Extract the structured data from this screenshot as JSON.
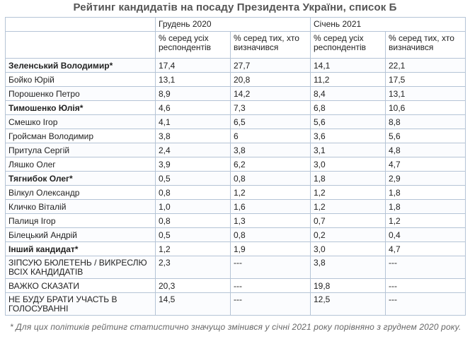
{
  "title": "Рейтинг кандидатів на посаду Президента України, список Б",
  "periods": [
    "Грудень 2020",
    "Січень 2021"
  ],
  "subheaders": [
    "% серед усіх респондентів",
    "% серед тих, хто визначився",
    "% серед усіх респондентів",
    "% серед тих, хто визначився"
  ],
  "rows": [
    {
      "name": "Зеленський Володимир*",
      "bold": true,
      "v": [
        "17,4",
        "27,7",
        "14,1",
        "22,1"
      ]
    },
    {
      "name": "Бойко Юрій",
      "bold": false,
      "v": [
        "13,1",
        "20,8",
        "11,2",
        "17,5"
      ]
    },
    {
      "name": "Порошенко Петро",
      "bold": false,
      "v": [
        "8,9",
        "14,2",
        "8,4",
        "13,1"
      ]
    },
    {
      "name": "Тимошенко Юлія*",
      "bold": true,
      "v": [
        "4,6",
        "7,3",
        "6,8",
        "10,6"
      ]
    },
    {
      "name": "Смешко Ігор",
      "bold": false,
      "v": [
        "4,1",
        "6,5",
        "5,6",
        "8,8"
      ]
    },
    {
      "name": "Гройсман Володимир",
      "bold": false,
      "v": [
        "3,8",
        "6",
        "3,6",
        "5,6"
      ]
    },
    {
      "name": "Притула Сергій",
      "bold": false,
      "v": [
        "2,4",
        "3,8",
        "3,1",
        "4,8"
      ]
    },
    {
      "name": "Ляшко Олег",
      "bold": false,
      "v": [
        "3,9",
        "6,2",
        "3,0",
        "4,7"
      ]
    },
    {
      "name": "Тягнибок Олег*",
      "bold": true,
      "v": [
        "0,5",
        "0,8",
        "1,8",
        "2,9"
      ]
    },
    {
      "name": "Вілкул Олександр",
      "bold": false,
      "v": [
        "0,8",
        "1,2",
        "1,2",
        "1,8"
      ]
    },
    {
      "name": "Кличко Віталій",
      "bold": false,
      "v": [
        "1,0",
        "1,6",
        "1,2",
        "1,8"
      ]
    },
    {
      "name": "Палиця Ігор",
      "bold": false,
      "v": [
        "0,8",
        "1,3",
        "0,7",
        "1,2"
      ]
    },
    {
      "name": "Білецький Андрій",
      "bold": false,
      "v": [
        "0,5",
        "0,8",
        "0,2",
        "0,4"
      ]
    },
    {
      "name": "Інший кандидат*",
      "bold": true,
      "v": [
        "1,2",
        "1,9",
        "3,0",
        "4,7"
      ]
    },
    {
      "name": "ЗІПСУЮ БЮЛЕТЕНЬ / ВИКРЕСЛЮ ВСІХ КАНДИДАТІВ",
      "bold": false,
      "tall": true,
      "v": [
        "2,3",
        "---",
        "3,8",
        "---"
      ]
    },
    {
      "name": "ВАЖКО СКАЗАТИ",
      "bold": false,
      "v": [
        "20,3",
        "---",
        "19,8",
        "---"
      ]
    },
    {
      "name": "НЕ БУДУ БРАТИ УЧАСТЬ В ГОЛОСУВАННІ",
      "bold": false,
      "tall": true,
      "v": [
        "14,5",
        "---",
        "12,5",
        "---"
      ]
    }
  ],
  "footnote": "* Для цих політиків рейтинг статистично значущо змінився у січні 2021 року порівняно з груднем 2020 року."
}
